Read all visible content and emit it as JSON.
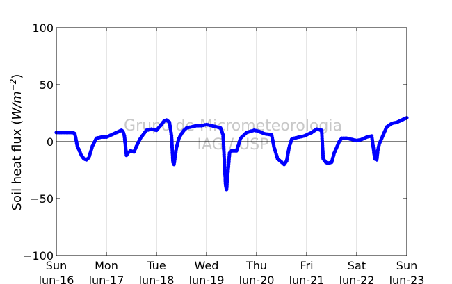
{
  "chart_data": {
    "type": "line",
    "ylabel_prefix": "Soil heat flux (",
    "ylabel_unit": "W/m",
    "ylabel_exp": "−2",
    "ylabel_suffix": ")",
    "ylim": [
      -100,
      100
    ],
    "yticks": [
      {
        "value": 100,
        "label": "100"
      },
      {
        "value": 50,
        "label": "50"
      },
      {
        "value": 0,
        "label": "0"
      },
      {
        "value": -50,
        "label": "−50"
      },
      {
        "value": -100,
        "label": "−100"
      }
    ],
    "xlim": [
      0,
      7
    ],
    "xticks": [
      {
        "day": 0,
        "weekday": "Sun",
        "date": "lun-16"
      },
      {
        "day": 1,
        "weekday": "Mon",
        "date": "lun-17"
      },
      {
        "day": 2,
        "weekday": "Tue",
        "date": "lun-18"
      },
      {
        "day": 3,
        "weekday": "Wed",
        "date": "lun-19"
      },
      {
        "day": 4,
        "weekday": "Thu",
        "date": "lun-20"
      },
      {
        "day": 5,
        "weekday": "Fri",
        "date": "lun-21"
      },
      {
        "day": 6,
        "weekday": "Sat",
        "date": "lun-22"
      },
      {
        "day": 7,
        "weekday": "Sun",
        "date": "lun-23"
      }
    ],
    "grid": "vertical",
    "zero_line": true,
    "watermark_line1": "Grupo de Micrometeorologia",
    "watermark_line2": "IAG / USP",
    "series_color": "#0000ff",
    "x": [
      0.0,
      0.1,
      0.2,
      0.33,
      0.37,
      0.42,
      0.5,
      0.55,
      0.6,
      0.65,
      0.72,
      0.8,
      0.9,
      1.0,
      1.1,
      1.2,
      1.3,
      1.33,
      1.36,
      1.4,
      1.43,
      1.48,
      1.55,
      1.6,
      1.68,
      1.8,
      1.9,
      2.0,
      2.08,
      2.15,
      2.2,
      2.26,
      2.3,
      2.33,
      2.35,
      2.37,
      2.4,
      2.45,
      2.5,
      2.55,
      2.6,
      2.7,
      2.8,
      2.9,
      3.0,
      3.1,
      3.2,
      3.28,
      3.33,
      3.36,
      3.38,
      3.4,
      3.42,
      3.46,
      3.5,
      3.55,
      3.6,
      3.68,
      3.8,
      3.95,
      4.05,
      4.15,
      4.3,
      4.35,
      4.42,
      4.5,
      4.55,
      4.6,
      4.65,
      4.7,
      4.75,
      4.85,
      4.95,
      5.1,
      5.2,
      5.3,
      5.33,
      5.38,
      5.42,
      5.5,
      5.55,
      5.6,
      5.65,
      5.7,
      5.8,
      5.9,
      6.0,
      6.1,
      6.2,
      6.3,
      6.36,
      6.4,
      6.42,
      6.45,
      6.5,
      6.55,
      6.6,
      6.7,
      6.8,
      6.9,
      7.0
    ],
    "y": [
      8,
      8,
      8,
      8,
      7,
      -4,
      -12,
      -15,
      -16,
      -14,
      -4,
      3,
      4,
      4,
      6,
      8,
      10,
      9,
      5,
      -12,
      -10,
      -8,
      -9,
      -4,
      3,
      10,
      11,
      10,
      14,
      18,
      19,
      17,
      5,
      -18,
      -20,
      -14,
      -5,
      3,
      7,
      10,
      12,
      13,
      14,
      14,
      15,
      14,
      13,
      12,
      6,
      -20,
      -38,
      -42,
      -30,
      -10,
      -8,
      -8,
      -8,
      3,
      8,
      10,
      9,
      7,
      6,
      -5,
      -15,
      -18,
      -20,
      -17,
      -5,
      2,
      3,
      4,
      5,
      8,
      11,
      10,
      -15,
      -18,
      -19,
      -18,
      -10,
      -5,
      0,
      3,
      3,
      2,
      1,
      2,
      4,
      5,
      -15,
      -16,
      -8,
      -2,
      3,
      8,
      13,
      16,
      17,
      19,
      21
    ]
  }
}
